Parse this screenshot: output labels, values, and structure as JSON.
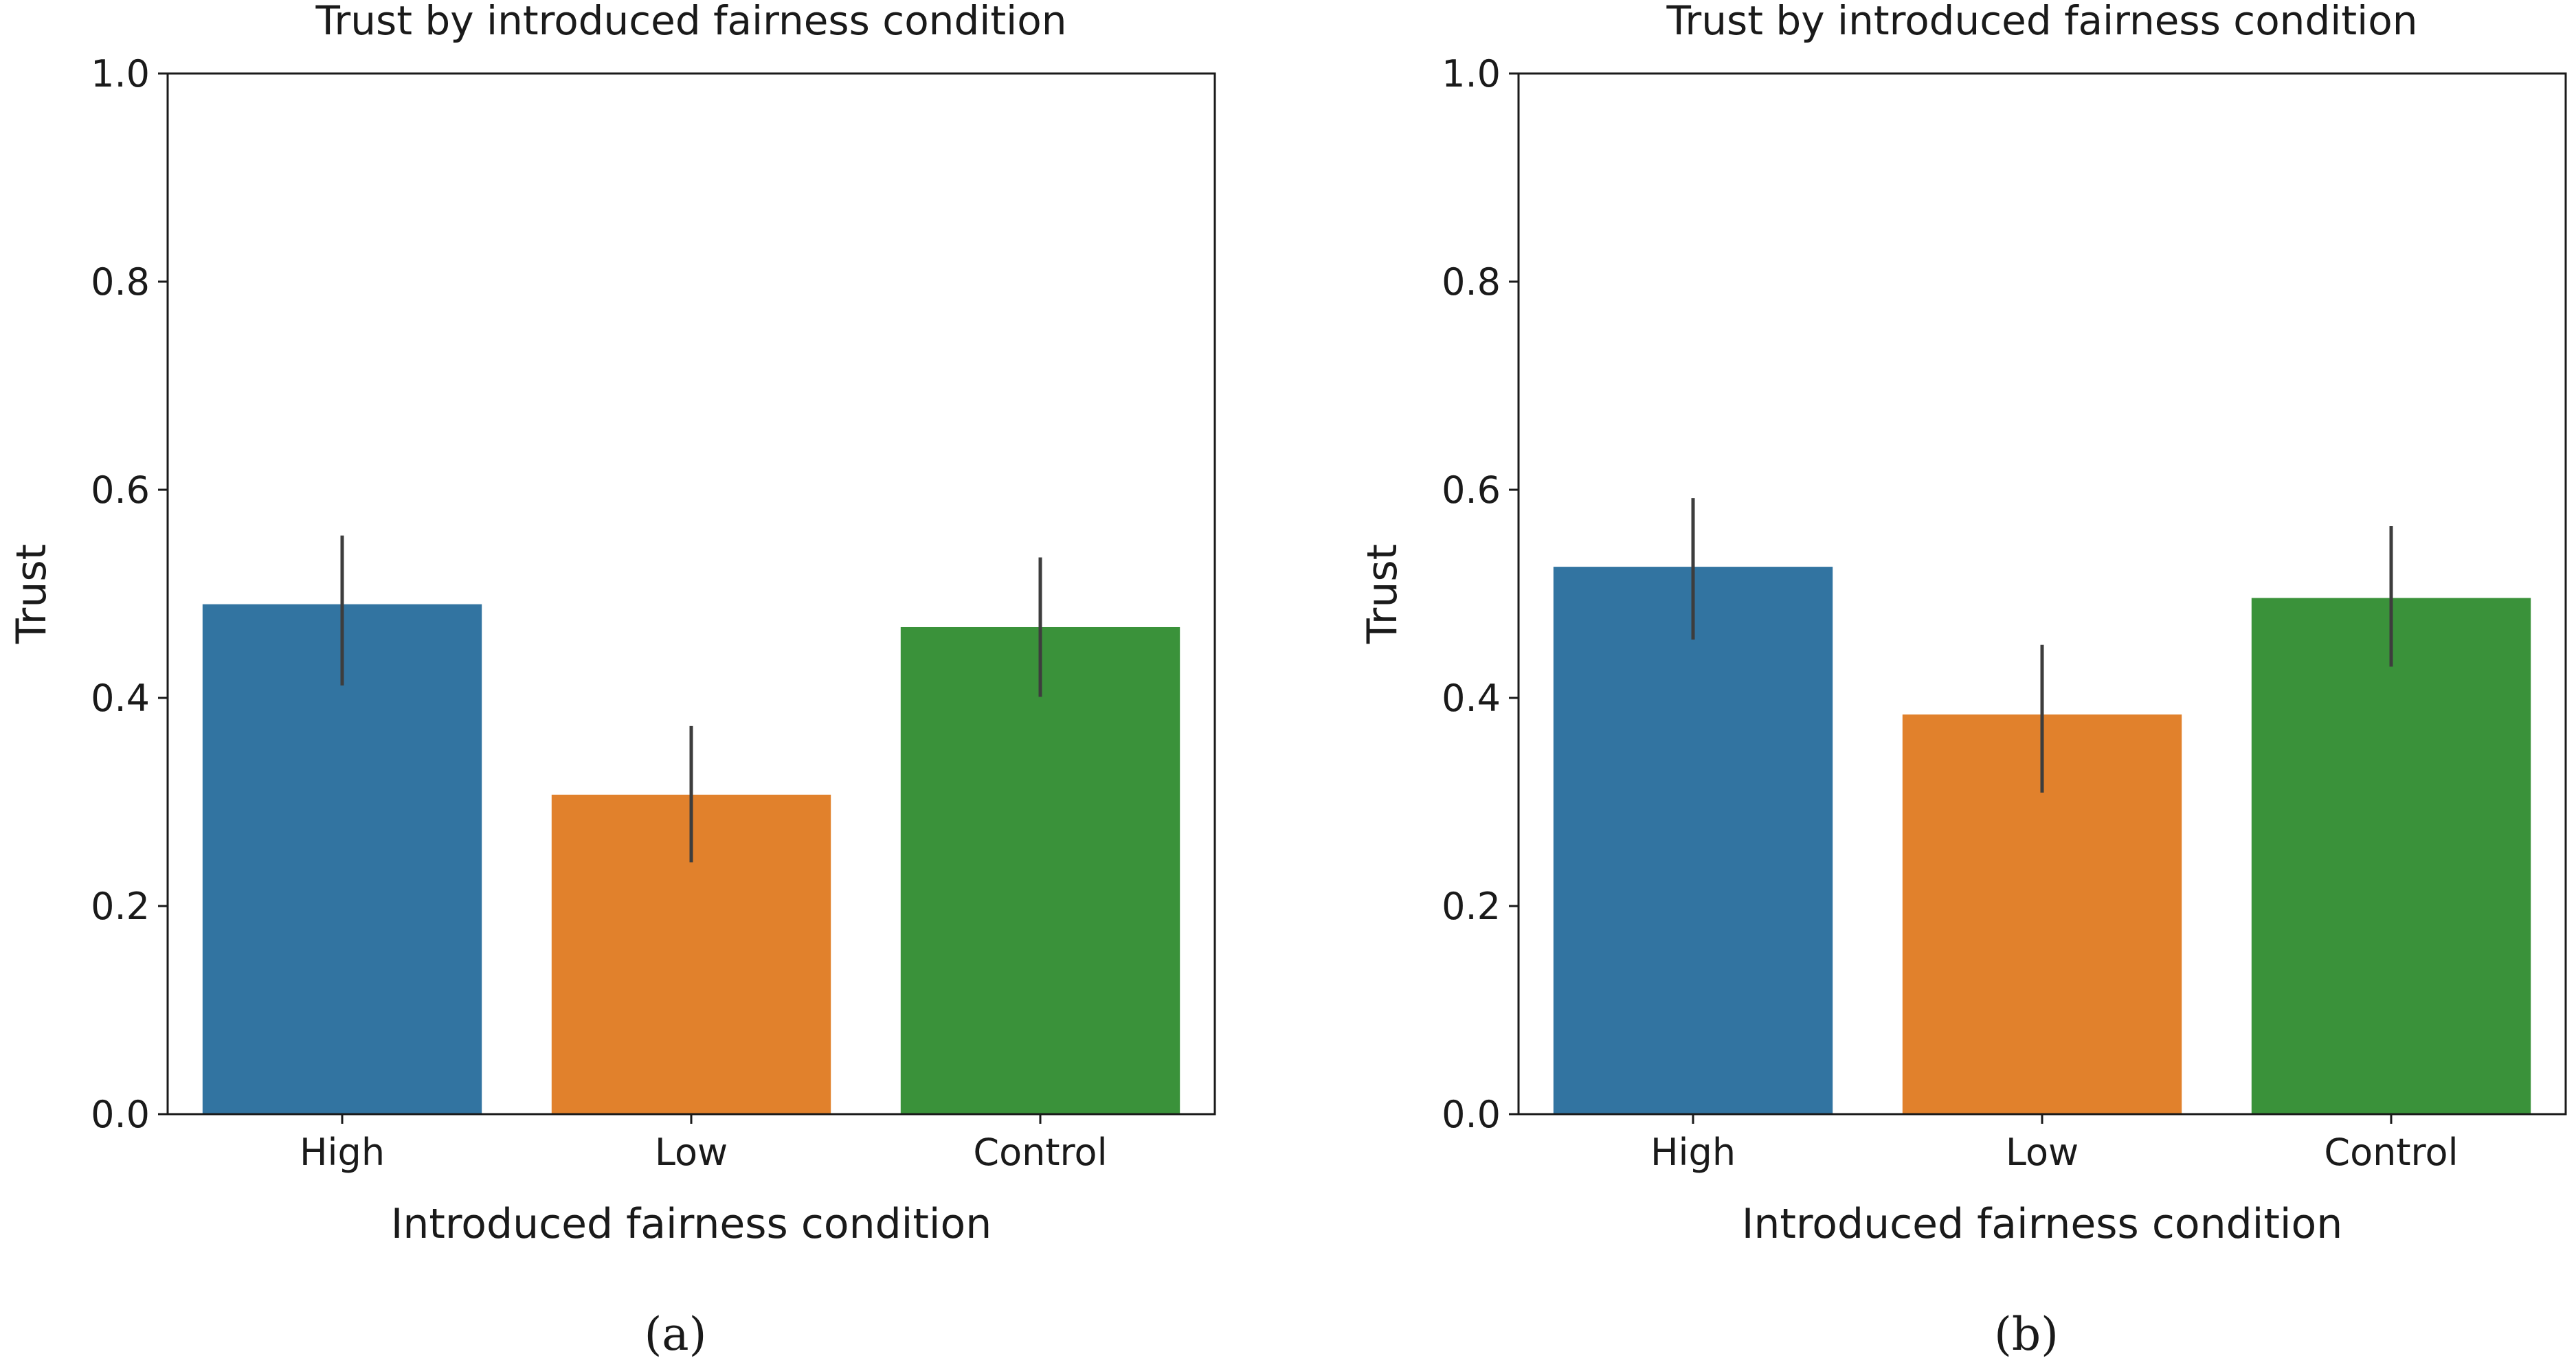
{
  "chart_data": [
    {
      "type": "bar",
      "title": "Trust by introduced fairness condition",
      "xlabel": "Introduced fairness condition",
      "ylabel": "Trust",
      "ylim": [
        0,
        1.0
      ],
      "yticks": [
        "0.0",
        "0.2",
        "0.4",
        "0.6",
        "0.8",
        "1.0"
      ],
      "categories": [
        "High",
        "Low",
        "Control"
      ],
      "values": [
        0.49,
        0.307,
        0.468
      ],
      "ci_low": [
        0.412,
        0.242,
        0.401
      ],
      "ci_high": [
        0.556,
        0.373,
        0.535
      ],
      "colors": [
        "#3274a1",
        "#e1812c",
        "#3a923a"
      ],
      "grid": false,
      "caption": "(a)"
    },
    {
      "type": "bar",
      "title": "Trust by introduced fairness condition",
      "xlabel": "Introduced fairness condition",
      "ylabel": "Trust",
      "ylim": [
        0,
        1.0
      ],
      "yticks": [
        "0.0",
        "0.2",
        "0.4",
        "0.6",
        "0.8",
        "1.0"
      ],
      "categories": [
        "High",
        "Low",
        "Control"
      ],
      "values": [
        0.526,
        0.384,
        0.496
      ],
      "ci_low": [
        0.456,
        0.309,
        0.43
      ],
      "ci_high": [
        0.592,
        0.451,
        0.565
      ],
      "colors": [
        "#3274a1",
        "#e1812c",
        "#3a923a"
      ],
      "grid": false,
      "caption": "(b)"
    }
  ]
}
